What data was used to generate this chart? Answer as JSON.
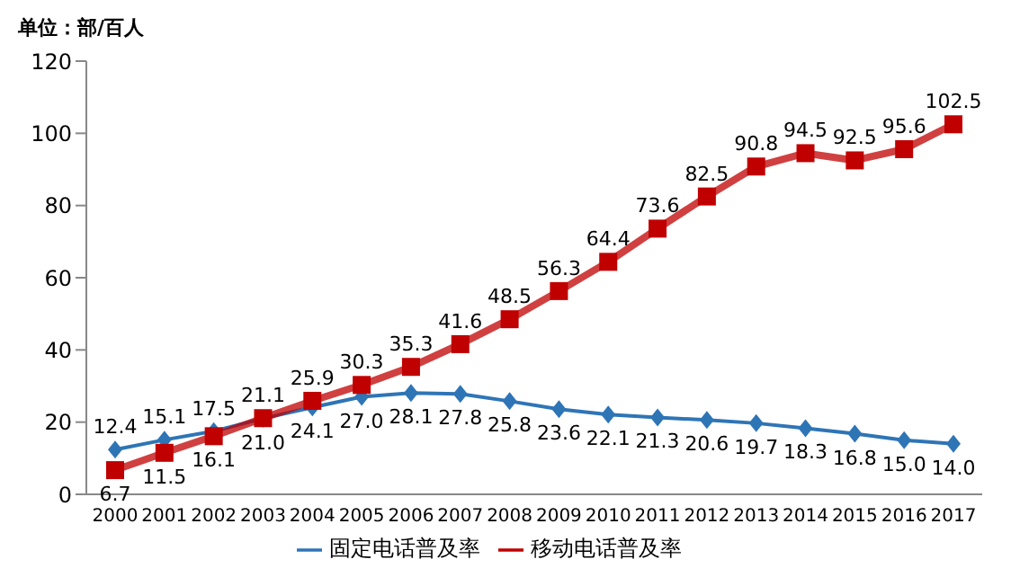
{
  "chart_data": {
    "type": "line",
    "ylabel": "单位：部/百人",
    "categories": [
      "2000",
      "2001",
      "2002",
      "2003",
      "2004",
      "2005",
      "2006",
      "2007",
      "2008",
      "2009",
      "2010",
      "2011",
      "2012",
      "2013",
      "2014",
      "2015",
      "2016",
      "2017"
    ],
    "series": [
      {
        "name": "固定电话普及率",
        "color": "#2e75b6",
        "marker": "diamond",
        "values": [
          12.4,
          15.1,
          17.5,
          21.0,
          24.1,
          27.0,
          28.1,
          27.8,
          25.8,
          23.6,
          22.1,
          21.3,
          20.6,
          19.7,
          18.3,
          16.8,
          15.0,
          14.0
        ],
        "value_labels": [
          "12.4",
          "15.1",
          "17.5",
          "21.0",
          "24.1",
          "27.0",
          "28.1",
          "27.8",
          "25.8",
          "23.6",
          "22.1",
          "21.3",
          "20.6",
          "19.7",
          "18.3",
          "16.8",
          "15.0",
          "14.0"
        ]
      },
      {
        "name": "移动电话普及率",
        "color": "#c00000",
        "marker": "square",
        "values": [
          6.7,
          11.5,
          16.1,
          21.1,
          25.9,
          30.3,
          35.3,
          41.6,
          48.5,
          56.3,
          64.4,
          73.6,
          82.5,
          90.8,
          94.5,
          92.5,
          95.6,
          102.5
        ],
        "value_labels": [
          "6.7",
          "11.5",
          "16.1",
          "21.1",
          "25.9",
          "30.3",
          "35.3",
          "41.6",
          "48.5",
          "56.3",
          "64.4",
          "73.6",
          "82.5",
          "90.8",
          "94.5",
          "92.5",
          "95.6",
          "102.5"
        ]
      }
    ],
    "ylim": [
      0,
      120
    ],
    "yticks": [
      0,
      20,
      40,
      60,
      80,
      100,
      120
    ],
    "grid": false,
    "legend": "bottom"
  }
}
